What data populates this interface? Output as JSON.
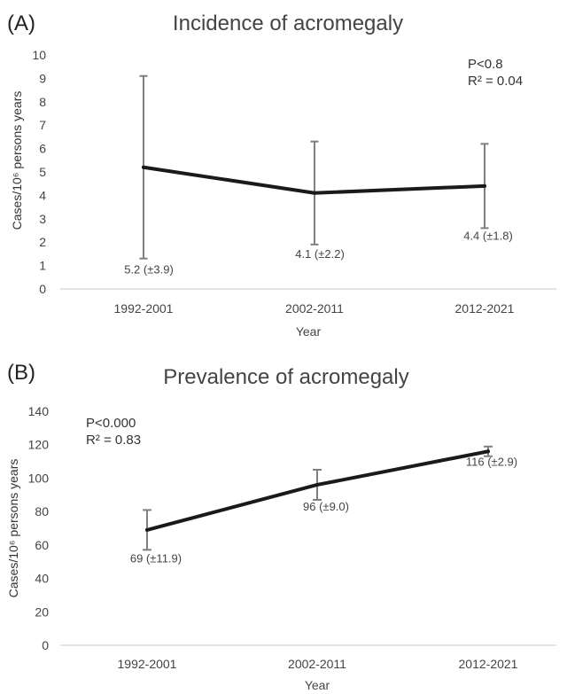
{
  "panels": [
    {
      "panel_label": "(A)",
      "title": "Incidence of acromegaly",
      "ylabel": "Cases/10⁶ persons years",
      "xlabel": "Year",
      "stats": [
        "P<0.8",
        "R² = 0.04"
      ]
    },
    {
      "panel_label": "(B)",
      "title": "Prevalence of acromegaly",
      "ylabel": "Cases/10⁶ persons years",
      "xlabel": "Year",
      "stats": [
        "P<0.000",
        "R² = 0.83"
      ]
    }
  ],
  "chart_data": [
    {
      "type": "line",
      "title": "Incidence of acromegaly",
      "xlabel": "Year",
      "ylabel": "Cases/10⁶ persons years",
      "categories": [
        "1992-2001",
        "2002-2011",
        "2012-2021"
      ],
      "series": [
        {
          "values": [
            5.2,
            4.1,
            4.4
          ],
          "error": [
            3.9,
            2.2,
            1.8
          ],
          "color": "#1a1a1a"
        }
      ],
      "data_labels": [
        "5.2 (±3.9)",
        "4.1 (±2.2)",
        "4.4 (±1.8)"
      ],
      "ylim": [
        0,
        10
      ],
      "yticks": [
        0,
        1,
        2,
        3,
        4,
        5,
        6,
        7,
        8,
        9,
        10
      ],
      "grid": false,
      "error_bar_color": "#7f7f7f"
    },
    {
      "type": "line",
      "title": "Prevalence of acromegaly",
      "xlabel": "Year",
      "ylabel": "Cases/10⁶ persons years",
      "categories": [
        "1992-2001",
        "2002-2011",
        "2012-2021"
      ],
      "series": [
        {
          "values": [
            69,
            96,
            116
          ],
          "error": [
            11.9,
            9.0,
            2.9
          ],
          "color": "#1a1a1a"
        }
      ],
      "data_labels": [
        "69 (±11.9)",
        "96 (±9.0)",
        "116 (±2.9)"
      ],
      "ylim": [
        0,
        140
      ],
      "yticks": [
        0,
        20,
        40,
        60,
        80,
        100,
        120,
        140
      ],
      "grid": false,
      "error_bar_color": "#7f7f7f"
    }
  ]
}
